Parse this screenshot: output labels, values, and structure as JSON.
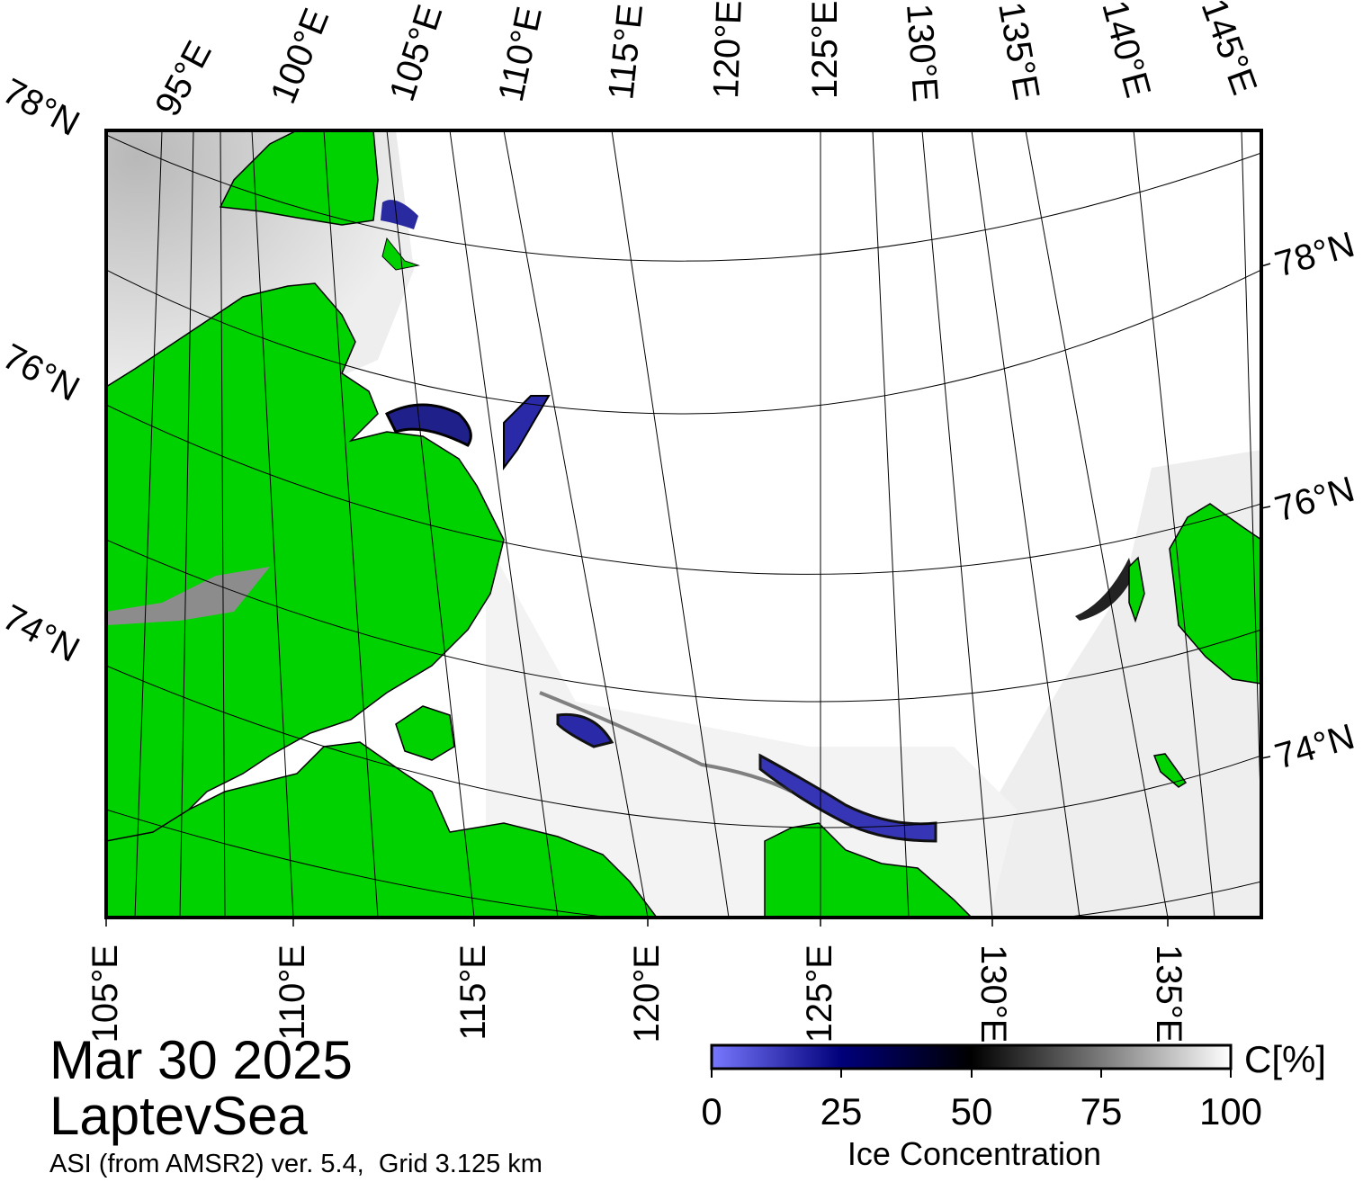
{
  "map": {
    "region": "LaptevSea",
    "date": "Mar 30 2025",
    "product": "ASI (from AMSR2) ver. 5.4,  Grid 3.125 km",
    "top_lon_labels": [
      "95°E",
      "100°E",
      "105°E",
      "110°E",
      "115°E",
      "120°E",
      "125°E",
      "130°E",
      "135°E",
      "140°E",
      "145°E"
    ],
    "bottom_lon_labels": [
      "105°E",
      "110°E",
      "115°E",
      "120°E",
      "125°E",
      "130°E",
      "135°E"
    ],
    "left_lat_labels": [
      "78°N",
      "76°N",
      "74°N"
    ],
    "right_lat_labels": [
      "78°N",
      "76°N",
      "74°N"
    ],
    "colors": {
      "land": "#00d200",
      "coast_ice": "#8c8c8c",
      "ocean_ice": "#ffffff",
      "low_conc": "#1a1a8c"
    }
  },
  "colorbar": {
    "title": "Ice Concentration",
    "unit": "C[%]",
    "ticks": [
      "0",
      "25",
      "50",
      "75",
      "100"
    ],
    "gradient": [
      "#7878ff",
      "#00007a",
      "#000000",
      "#7a7a7a",
      "#ffffff"
    ]
  }
}
